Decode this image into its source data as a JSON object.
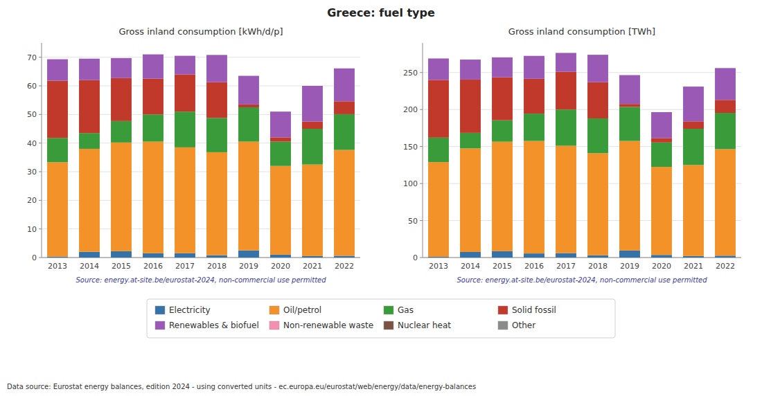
{
  "chart_data": [
    {
      "type": "bar",
      "stacked": true,
      "grid": true,
      "legend": "bottom",
      "title": "Greece: fuel type",
      "subtitle": "Gross inland consumption [kWh/d/p]",
      "annotations": [
        "Source: energy.at-site.be/eurostat-2024, non-commercial use permitted",
        "Data source: Eurostat energy balances, edition 2024 - using converted units - ec.europa.eu/eurostat/web/energy/data/energy-balances"
      ],
      "categories": [
        2013,
        2014,
        2015,
        2016,
        2017,
        2018,
        2019,
        2020,
        2021,
        2022
      ],
      "ylim": [
        0,
        75
      ],
      "yticks": [
        0,
        10,
        20,
        30,
        40,
        50,
        60,
        70
      ],
      "series": [
        {
          "name": "Electricity",
          "color": "#3472a8",
          "values": [
            0.3,
            2.0,
            2.2,
            1.5,
            1.5,
            0.8,
            2.5,
            1.0,
            0.5,
            0.6
          ]
        },
        {
          "name": "Oil/petrol",
          "color": "#f4922a",
          "values": [
            33.0,
            36.0,
            38.0,
            39.0,
            37.0,
            36.0,
            38.0,
            31.0,
            32.0,
            37.0
          ]
        },
        {
          "name": "Gas",
          "color": "#3a9b3a",
          "values": [
            8.5,
            5.5,
            7.5,
            9.5,
            12.5,
            12.0,
            12.0,
            8.5,
            12.5,
            12.5
          ]
        },
        {
          "name": "Solid fossil",
          "color": "#c0392b",
          "values": [
            20.0,
            18.5,
            15.0,
            12.5,
            13.0,
            12.5,
            1.0,
            1.5,
            2.5,
            4.5
          ]
        },
        {
          "name": "Renewables & biofuel",
          "color": "#9b59b6",
          "values": [
            7.5,
            7.5,
            7.0,
            8.5,
            6.5,
            9.5,
            10.0,
            9.0,
            12.5,
            11.5
          ]
        },
        {
          "name": "Non-renewable waste",
          "color": "#f48fb1",
          "values": [
            0.0,
            0.0,
            0.0,
            0.0,
            0.0,
            0.0,
            0.0,
            0.0,
            0.0,
            0.0
          ]
        },
        {
          "name": "Nuclear heat",
          "color": "#7b5345",
          "values": [
            0.0,
            0.0,
            0.0,
            0.0,
            0.0,
            0.0,
            0.0,
            0.0,
            0.0,
            0.0
          ]
        },
        {
          "name": "Other",
          "color": "#8b8b8b",
          "values": [
            0.0,
            0.0,
            0.0,
            0.0,
            0.0,
            0.0,
            0.0,
            0.0,
            0.0,
            0.0
          ]
        }
      ]
    },
    {
      "type": "bar",
      "stacked": true,
      "grid": true,
      "subtitle": "Gross inland consumption [TWh]",
      "annotations": [
        "Source: energy.at-site.be/eurostat-2024, non-commercial use permitted"
      ],
      "categories": [
        2013,
        2014,
        2015,
        2016,
        2017,
        2018,
        2019,
        2020,
        2021,
        2022
      ],
      "ylim": [
        0,
        290
      ],
      "yticks": [
        0,
        50,
        100,
        150,
        200,
        250
      ],
      "series": [
        {
          "name": "Electricity",
          "color": "#3472a8",
          "values": [
            1.0,
            7.5,
            8.5,
            5.5,
            6.0,
            3.0,
            9.5,
            3.5,
            2.0,
            2.5
          ]
        },
        {
          "name": "Oil/petrol",
          "color": "#f4922a",
          "values": [
            128.0,
            140.0,
            148.0,
            152.0,
            145.0,
            138.0,
            148.0,
            119.0,
            123.0,
            144.0
          ]
        },
        {
          "name": "Gas",
          "color": "#3a9b3a",
          "values": [
            33.0,
            21.0,
            29.0,
            37.0,
            49.0,
            47.0,
            46.0,
            33.0,
            49.0,
            49.0
          ]
        },
        {
          "name": "Solid fossil",
          "color": "#c0392b",
          "values": [
            78.0,
            72.0,
            58.0,
            47.0,
            51.0,
            49.0,
            4.0,
            6.0,
            10.0,
            17.5
          ]
        },
        {
          "name": "Renewables & biofuel",
          "color": "#9b59b6",
          "values": [
            29.0,
            27.0,
            27.0,
            31.0,
            25.5,
            37.0,
            39.0,
            35.0,
            47.0,
            43.0
          ]
        },
        {
          "name": "Non-renewable waste",
          "color": "#f48fb1",
          "values": [
            0.0,
            0.0,
            0.0,
            0.0,
            0.0,
            0.0,
            0.0,
            0.0,
            0.0,
            0.0
          ]
        },
        {
          "name": "Nuclear heat",
          "color": "#7b5345",
          "values": [
            0.0,
            0.0,
            0.0,
            0.0,
            0.0,
            0.0,
            0.0,
            0.0,
            0.0,
            0.0
          ]
        },
        {
          "name": "Other",
          "color": "#8b8b8b",
          "values": [
            0.0,
            0.0,
            0.0,
            0.0,
            0.0,
            0.0,
            0.0,
            0.0,
            0.0,
            0.0
          ]
        }
      ]
    }
  ]
}
